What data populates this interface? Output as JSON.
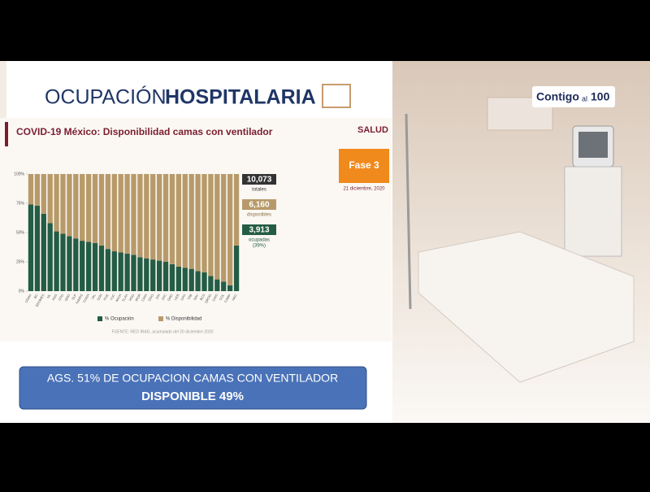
{
  "header": {
    "title_light": "OCUPACIÓN",
    "title_bold": "HOSPITALARIA"
  },
  "logo": {
    "main": "Contigo",
    "small": "al",
    "number": "100"
  },
  "badge": {
    "institution": "SALUD",
    "phase": "Fase 3",
    "date": "21 diciembre, 2020"
  },
  "summary": {
    "total": "10,073",
    "total_label": "totales",
    "available": "6,160",
    "available_label": "disponibles",
    "occupied": "3,913",
    "occupied_label": "ocupadas",
    "occupied_pct": "(39%)"
  },
  "source": "FUENTE: RED IRAG, acumulado del 20 diciembre 2020",
  "banner": {
    "line1": "AGS. 51% DE OCUPACION CAMAS CON VENTILADOR",
    "line2": "DISPONIBLE 49%"
  },
  "chart_data": {
    "type": "stacked_bar",
    "title": "COVID-19 México: Disponibilidad camas con ventilador",
    "categories": [
      "CDMX",
      "BC",
      "EDOMEX",
      "NL",
      "AGS",
      "GTO",
      "QRO",
      "SLP",
      "TAMPS",
      "COAH",
      "JAL",
      "SON",
      "PUE",
      "YUC",
      "MICH",
      "TLAX",
      "HGO",
      "MOR",
      "CHIH",
      "DGO",
      "SIN",
      "ZAC",
      "GRO",
      "VER",
      "OAX",
      "TAB",
      "NAY",
      "BCS",
      "QROO",
      "CHIS",
      "COL",
      "CAMP",
      "NAC"
    ],
    "series": [
      {
        "name": "% Ocupación",
        "color": "#245c45",
        "values": [
          74,
          73,
          66,
          58,
          51,
          49,
          47,
          45,
          43,
          42,
          41,
          39,
          36,
          34,
          33,
          32,
          31,
          29,
          28,
          27,
          26,
          25,
          23,
          21,
          20,
          19,
          17,
          16,
          13,
          10,
          8,
          5,
          39
        ]
      },
      {
        "name": "% Disponibilidad",
        "color": "#b89a6a",
        "values": [
          26,
          27,
          34,
          42,
          49,
          51,
          53,
          55,
          57,
          58,
          59,
          61,
          64,
          66,
          67,
          68,
          69,
          71,
          72,
          73,
          74,
          75,
          77,
          79,
          80,
          81,
          83,
          84,
          87,
          90,
          92,
          95,
          61
        ]
      }
    ],
    "ylim": [
      0,
      100
    ],
    "yticks": [
      {
        "value": 0,
        "label": "0%"
      },
      {
        "value": 25,
        "label": "25%"
      },
      {
        "value": 50,
        "label": "50%"
      },
      {
        "value": 75,
        "label": "75%"
      },
      {
        "value": 100,
        "label": "100%"
      }
    ],
    "legend": "bottom"
  }
}
